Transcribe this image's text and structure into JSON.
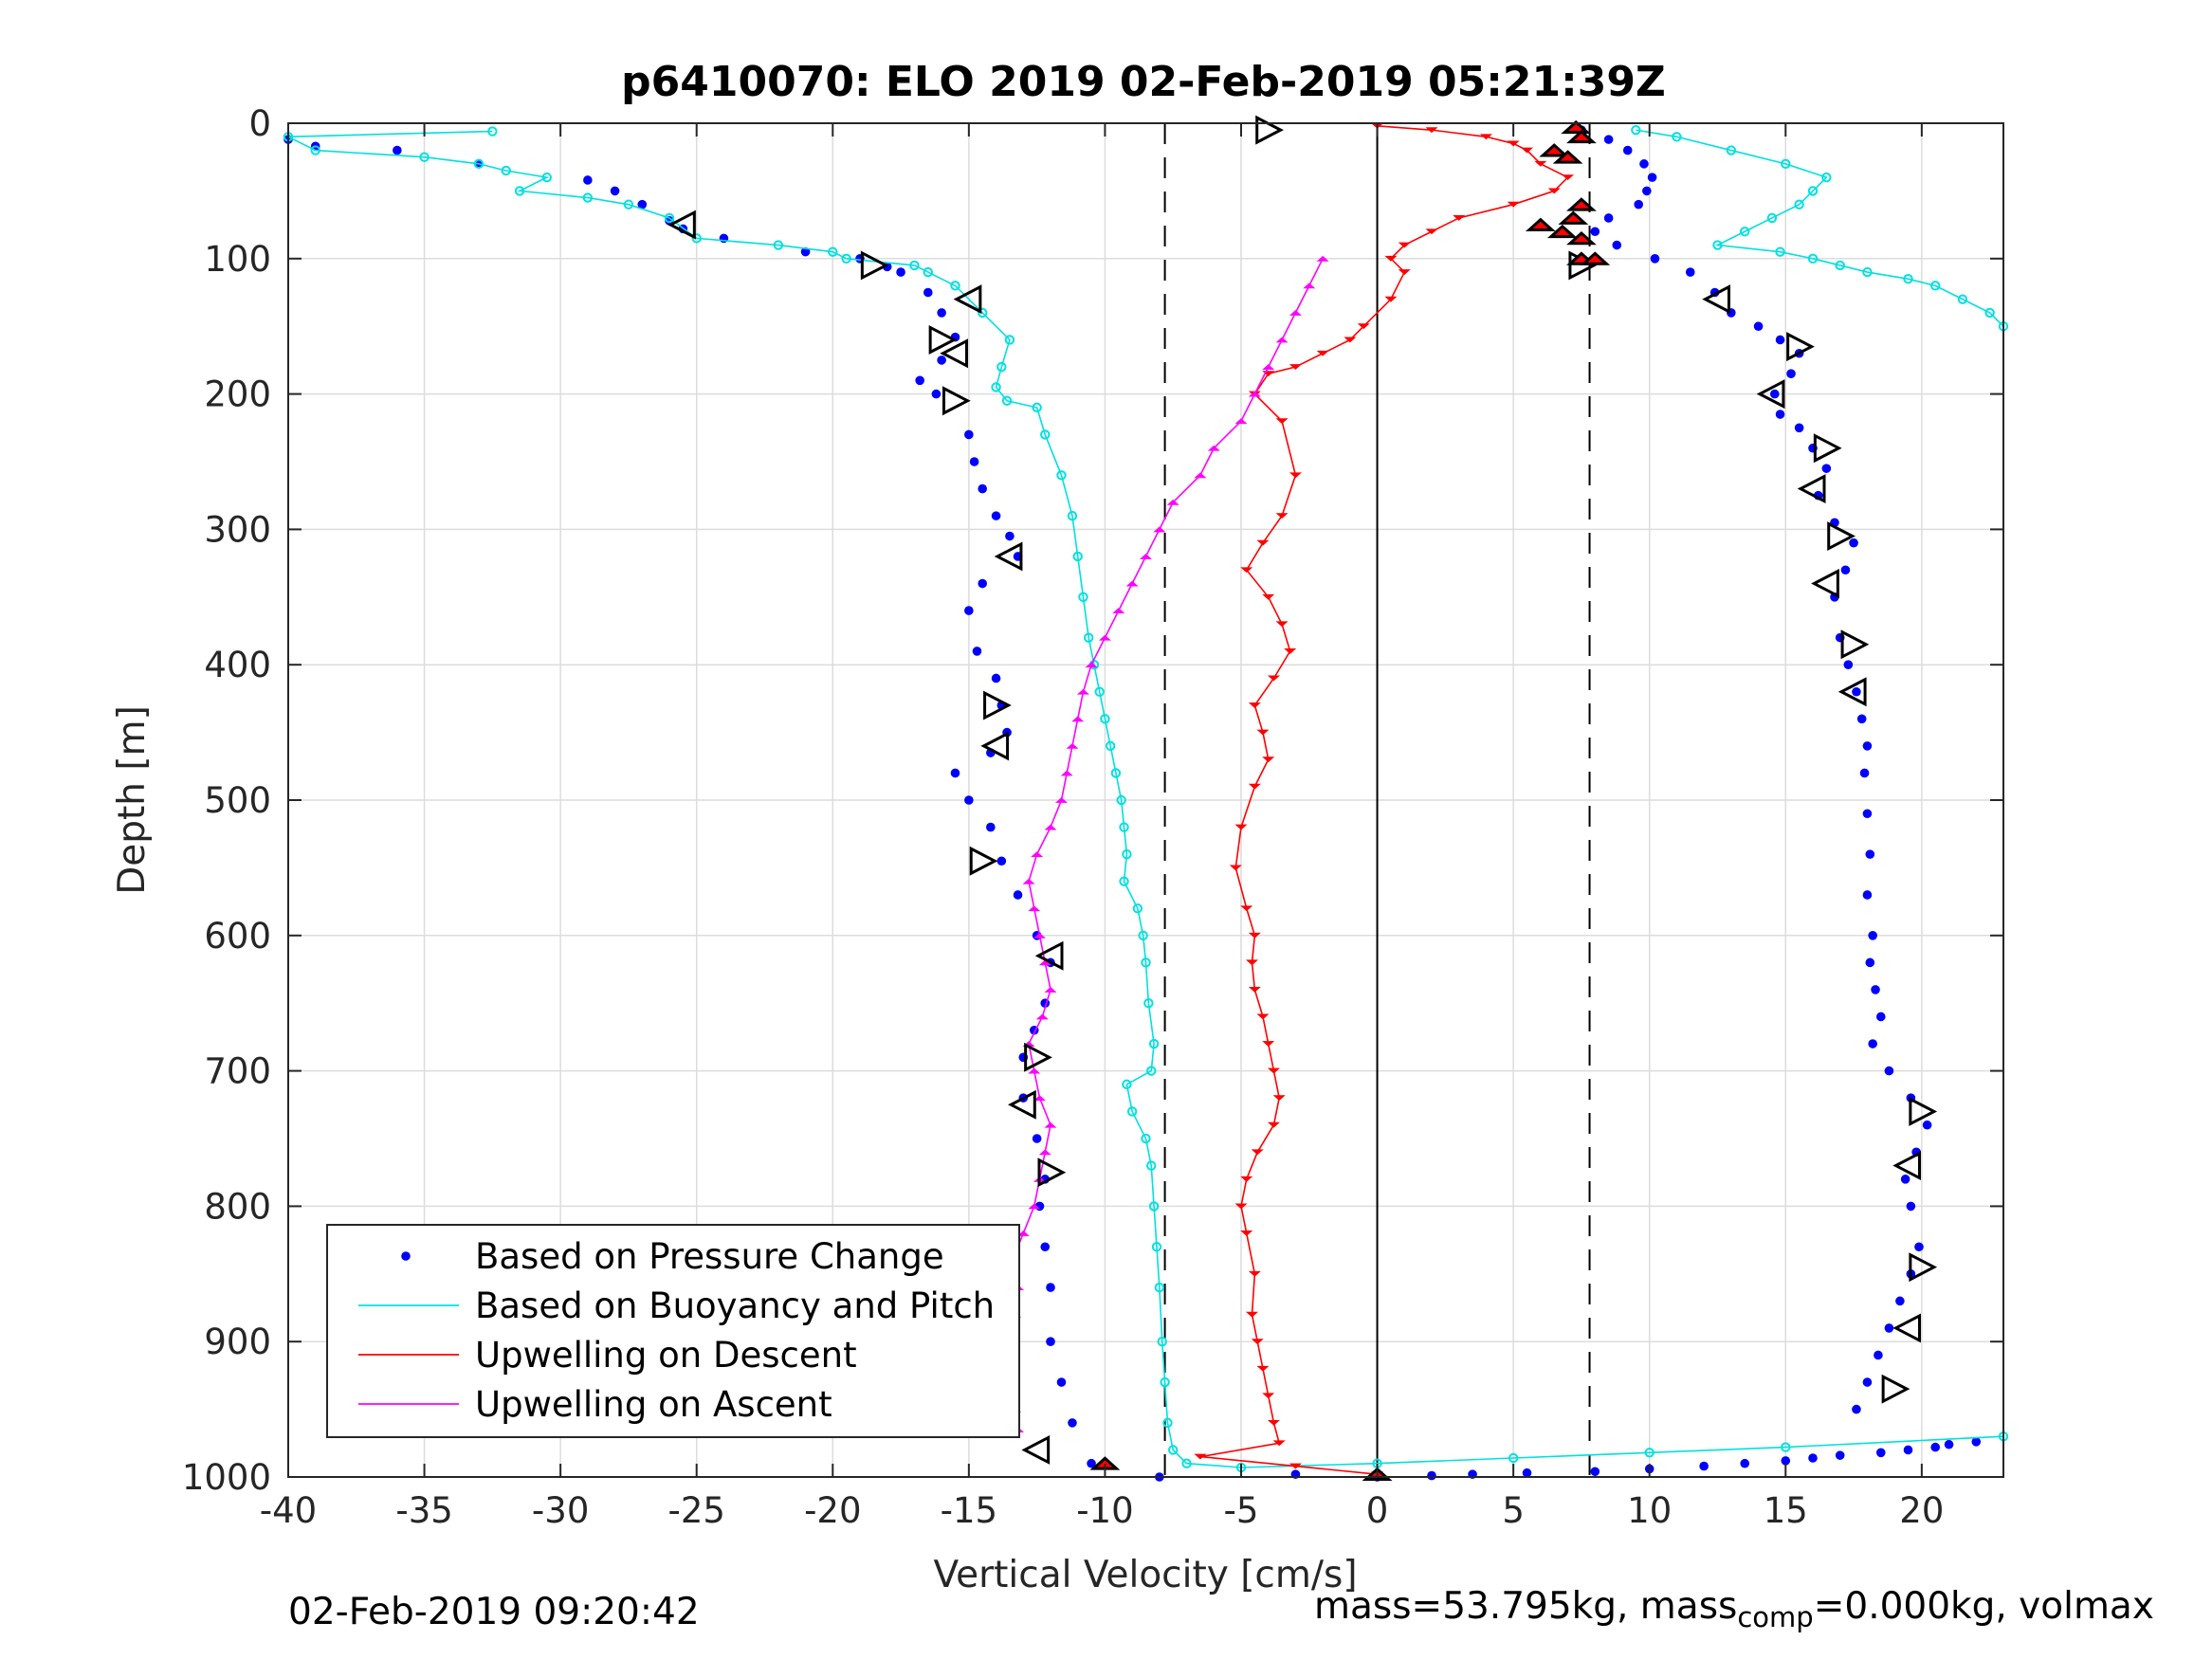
{
  "chart_data": {
    "type": "scatter",
    "title": "p6410070: ELO 2019 02-Feb-2019 05:21:39Z",
    "xlabel": "Vertical Velocity [cm/s]",
    "ylabel": "Depth [m]",
    "xlim": [
      -40,
      23
    ],
    "ylim": [
      0,
      1000
    ],
    "y_reversed": true,
    "x_ticks": [
      -40,
      -35,
      -30,
      -25,
      -20,
      -15,
      -10,
      -5,
      0,
      5,
      10,
      15,
      20
    ],
    "x_tick_labels": [
      "-40",
      "-35",
      "-30",
      "-25",
      "-20",
      "-15",
      "-10",
      "-5",
      "0",
      "5",
      "10",
      "15",
      "20"
    ],
    "y_ticks": [
      0,
      100,
      200,
      300,
      400,
      500,
      600,
      700,
      800,
      900,
      1000
    ],
    "y_tick_labels": [
      "0",
      "100",
      "200",
      "300",
      "400",
      "500",
      "600",
      "700",
      "800",
      "900",
      "1000"
    ],
    "grid": true,
    "legend_position": "bottom-left",
    "reference_lines": {
      "zero_solid_x": 0,
      "dashed_x": [
        -7.8,
        7.8
      ]
    },
    "series": [
      {
        "name": "Based on Pressure Change",
        "color": "#0000ff",
        "style": "dots",
        "segments": [
          {
            "x": [
              -40,
              -39,
              -36,
              -33,
              -29,
              -28,
              -27,
              -26,
              -25.5,
              -24,
              -21,
              -19,
              -18,
              -17.5,
              -16.5,
              -16,
              -15.5,
              -16,
              -16.8,
              -16.2,
              -15,
              -14.8,
              -14.5,
              -14,
              -13.5,
              -13.2,
              -14.5,
              -15,
              -14.7,
              -14,
              -13.8,
              -13.6,
              -14.2,
              -15.5,
              -15,
              -14.2,
              -13.8,
              -13.2,
              -12.5,
              -12,
              -12.2,
              -12.6,
              -13,
              -13,
              -12.5,
              -12.2,
              -12.4,
              -12.2,
              -12,
              -12,
              -11.6,
              -11.2,
              -10.5,
              -8
            ],
            "y": [
              12,
              17,
              20,
              30,
              42,
              50,
              60,
              72,
              78,
              85,
              95,
              100,
              106,
              110,
              125,
              140,
              158,
              175,
              190,
              200,
              230,
              250,
              270,
              290,
              305,
              320,
              340,
              360,
              390,
              410,
              430,
              450,
              465,
              480,
              500,
              520,
              545,
              570,
              600,
              620,
              650,
              670,
              690,
              720,
              750,
              780,
              800,
              830,
              860,
              900,
              930,
              960,
              990,
              1000
            ]
          },
          {
            "x": [
              -3,
              0,
              2,
              3.5,
              5.5,
              8,
              10,
              12,
              13.5,
              15,
              16,
              17,
              18.5,
              19.5,
              20.5,
              21,
              22
            ],
            "y": [
              998,
              1000,
              999,
              998,
              997,
              996,
              994,
              992,
              990,
              988,
              986,
              984,
              982,
              980,
              978,
              976,
              974
            ]
          },
          {
            "x": [
              7.5,
              8.5,
              9.2,
              9.8,
              10.1,
              9.9,
              9.6,
              8.5,
              8.0,
              8.8,
              10.2,
              11.5,
              12.4,
              13.0,
              14.0,
              14.8,
              15.5,
              15.2,
              14.6,
              14.8,
              15.5,
              16.0,
              16.5,
              16.2,
              16.8,
              17.5,
              17.2,
              16.8,
              17.0,
              17.3,
              17.6,
              17.8,
              18.0,
              17.9,
              18.0,
              18.1,
              18.0,
              18.2,
              18.1,
              18.3,
              18.5,
              18.2,
              18.8,
              19.6,
              20.2,
              19.8,
              19.4,
              19.6,
              19.9,
              19.6,
              19.2,
              18.8,
              18.4,
              18.0,
              17.6
            ],
            "y": [
              5,
              12,
              20,
              30,
              40,
              50,
              60,
              70,
              80,
              90,
              100,
              110,
              125,
              140,
              150,
              160,
              170,
              185,
              200,
              215,
              225,
              240,
              255,
              275,
              295,
              310,
              330,
              350,
              380,
              400,
              420,
              440,
              460,
              480,
              510,
              540,
              570,
              600,
              620,
              640,
              660,
              680,
              700,
              720,
              740,
              760,
              780,
              800,
              830,
              850,
              870,
              890,
              910,
              930,
              950
            ]
          }
        ]
      },
      {
        "name": "Based on Buoyancy and Pitch",
        "color": "#00e0e0",
        "style": "line+circles",
        "segments": [
          {
            "x": [
              -32.5,
              -40,
              -39,
              -35,
              -33,
              -32,
              -30.5,
              -31.5,
              -29,
              -27.5,
              -26,
              -25,
              -22,
              -20,
              -19.5,
              -17,
              -16.5,
              -15.5,
              -14.5,
              -13.5,
              -13.8,
              -14,
              -13.6,
              -12.5,
              -12.2,
              -11.6,
              -11.2,
              -11.0,
              -10.8,
              -10.6,
              -10.4,
              -10.2,
              -10.0,
              -9.8,
              -9.6,
              -9.4,
              -9.3,
              -9.2,
              -9.3,
              -8.8,
              -8.6,
              -8.5,
              -8.4,
              -8.2,
              -8.3,
              -9.2,
              -9.0,
              -8.5,
              -8.3,
              -8.2,
              -8.1,
              -8.0,
              -7.9,
              -7.8,
              -7.7,
              -7.5,
              -7.0,
              -5.0,
              0,
              5,
              10,
              15,
              23
            ],
            "y": [
              6,
              10,
              20,
              25,
              30,
              35,
              40,
              50,
              55,
              60,
              70,
              85,
              90,
              95,
              100,
              105,
              110,
              120,
              140,
              160,
              180,
              195,
              205,
              210,
              230,
              260,
              290,
              320,
              350,
              380,
              400,
              420,
              440,
              460,
              480,
              500,
              520,
              540,
              560,
              580,
              600,
              620,
              650,
              680,
              700,
              710,
              730,
              750,
              770,
              800,
              830,
              860,
              900,
              930,
              960,
              980,
              990,
              993,
              990,
              986,
              982,
              978,
              970
            ]
          },
          {
            "x": [
              9.5,
              11,
              13,
              15,
              16.5,
              16,
              15.5,
              14.5,
              13.5,
              12.5,
              14.8,
              16,
              17,
              18,
              19.5,
              20.5,
              21.5,
              22.5,
              23
            ],
            "y": [
              5,
              10,
              20,
              30,
              40,
              50,
              60,
              70,
              80,
              90,
              95,
              100,
              105,
              110,
              115,
              120,
              130,
              140,
              150
            ]
          }
        ]
      },
      {
        "name": "Upwelling on Descent",
        "color": "#ff0000",
        "style": "line+down-triangles",
        "segments": [
          {
            "x": [
              0,
              2,
              4,
              5,
              5.5,
              6,
              7,
              6.5,
              5,
              3,
              2,
              1,
              0.5,
              1,
              0.5,
              -0.5,
              -1,
              -2,
              -3,
              -4,
              -4.5,
              -3.5,
              -3,
              -3.5,
              -4.2,
              -4.8,
              -4,
              -3.5,
              -3.2,
              -3.8,
              -4.5,
              -4.2,
              -4.0,
              -4.5,
              -5.0,
              -5.2,
              -4.8,
              -4.5,
              -4.6,
              -4.5,
              -4.2,
              -4.0,
              -3.8,
              -3.6,
              -3.8,
              -4.4,
              -4.8,
              -5.0,
              -4.8,
              -4.5,
              -4.6,
              -4.4,
              -4.2,
              -4.0,
              -3.8,
              -3.6,
              -6.5,
              -3.0,
              0
            ],
            "y": [
              2,
              5,
              10,
              15,
              20,
              30,
              40,
              50,
              60,
              70,
              80,
              90,
              100,
              110,
              130,
              150,
              160,
              170,
              180,
              185,
              200,
              220,
              260,
              290,
              310,
              330,
              350,
              370,
              390,
              410,
              430,
              450,
              470,
              490,
              520,
              550,
              580,
              600,
              620,
              640,
              660,
              680,
              700,
              720,
              740,
              760,
              780,
              800,
              820,
              850,
              880,
              900,
              920,
              940,
              960,
              975,
              985,
              992,
              998
            ]
          }
        ]
      },
      {
        "name": "Upwelling on Ascent",
        "color": "#ff00ff",
        "style": "line+up-triangles",
        "segments": [
          {
            "x": [
              -13.2,
              -13.3,
              -13.4,
              -13.5,
              -13.3,
              -13.2,
              -13.4,
              -13.0,
              -12.6,
              -12.4,
              -12.2,
              -12.0,
              -12.4,
              -12.6,
              -12.8,
              -12.3,
              -12.0,
              -12.2,
              -12.4,
              -12.6,
              -12.8,
              -12.5,
              -12.0,
              -11.6,
              -11.4,
              -11.2,
              -11.0,
              -10.8,
              -10.5,
              -10.0,
              -9.5,
              -9.0,
              -8.5,
              -8.0,
              -7.5,
              -6.5,
              -6.0,
              -5.0,
              -4.5,
              -4.0,
              -3.5,
              -3.0,
              -2.5,
              -2.0
            ],
            "y": [
              965,
              950,
              920,
              900,
              880,
              860,
              840,
              820,
              800,
              780,
              760,
              740,
              720,
              700,
              680,
              660,
              640,
              620,
              600,
              580,
              560,
              540,
              520,
              500,
              480,
              460,
              440,
              420,
              400,
              380,
              360,
              340,
              320,
              300,
              280,
              260,
              240,
              220,
              200,
              180,
              160,
              140,
              120,
              100
            ]
          }
        ]
      }
    ],
    "markers": [
      {
        "name": "Dive turn triangles (open, black)",
        "color": "#000000",
        "x": [
          -4,
          -25.5,
          -18.5,
          -15,
          -16,
          -15.5,
          -15.5,
          -13.5,
          -14,
          -14,
          -14.5,
          -12,
          -12.5,
          -13,
          -12,
          -12.5,
          7.5,
          12.5,
          15.5,
          14.5,
          16.5,
          16,
          17,
          16.5,
          17.5,
          17.5,
          20,
          19.5,
          20,
          19.5,
          19
        ],
        "y": [
          5,
          75,
          105,
          130,
          160,
          170,
          205,
          320,
          430,
          460,
          545,
          615,
          690,
          725,
          775,
          980,
          105,
          130,
          165,
          200,
          240,
          270,
          305,
          340,
          385,
          420,
          730,
          770,
          845,
          890,
          935
        ]
      },
      {
        "name": "Red filled triangles (black edge)",
        "color": "#ff0000",
        "x": [
          7.3,
          7.5,
          6.5,
          7,
          7.5,
          7.2,
          6,
          6.8,
          7.5,
          7.5,
          8,
          -10,
          0
        ],
        "y": [
          3,
          10,
          20,
          25,
          60,
          70,
          75,
          80,
          85,
          100,
          100,
          990,
          998
        ]
      }
    ]
  },
  "footer": {
    "timestamp": "02-Feb-2019 09:20:42",
    "mass_prefix": "mass=53.795kg, mass",
    "mass_sub": "comp",
    "mass_suffix": "=0.000kg, volmax"
  }
}
